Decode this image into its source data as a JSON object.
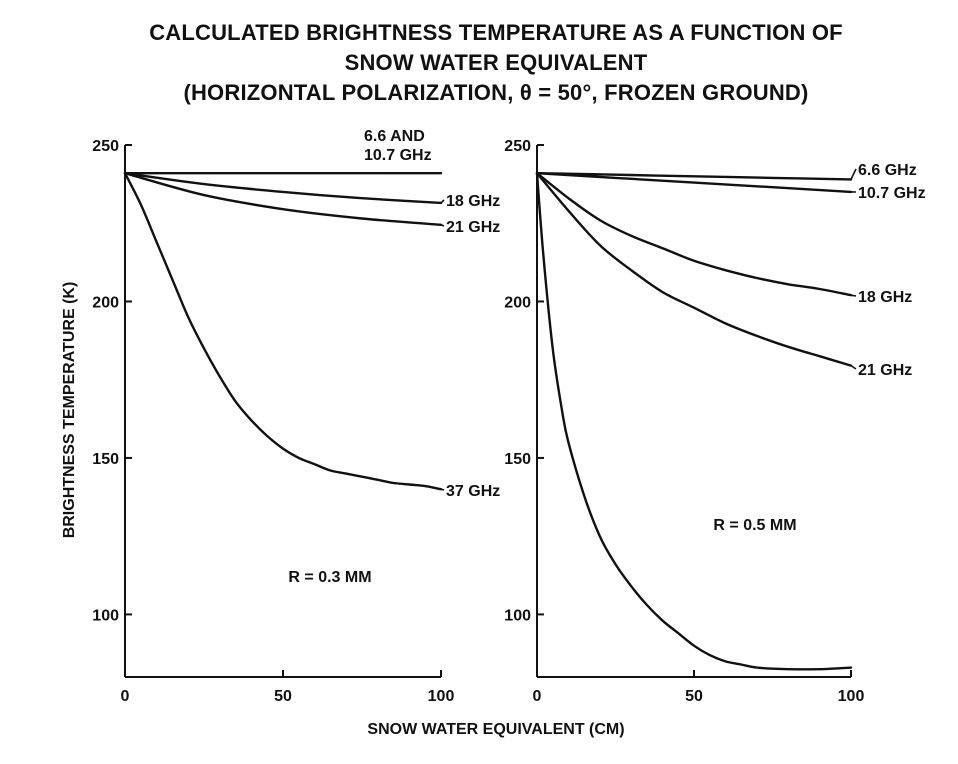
{
  "title_lines": [
    "CALCULATED BRIGHTNESS TEMPERATURE AS A FUNCTION OF",
    "SNOW WATER EQUIVALENT",
    "(HORIZONTAL POLARIZATION, θ = 50°, FROZEN GROUND)"
  ],
  "shared_ylabel": "BRIGHTNESS TEMPERATURE (K)",
  "shared_xlabel": "SNOW WATER EQUIVALENT (CM)",
  "chart_data": [
    {
      "type": "line",
      "annotation": "R = 0.3 MM",
      "xlim": [
        0,
        100
      ],
      "ylim": [
        80,
        250
      ],
      "xticks": [
        0,
        50,
        100
      ],
      "yticks": [
        100,
        150,
        200,
        250
      ],
      "grid": false,
      "series": [
        {
          "label_lines": [
            "6.6 AND",
            "10.7 GHz"
          ],
          "x": [
            0,
            25,
            50,
            75,
            100
          ],
          "y": [
            241,
            241,
            241,
            241,
            241
          ]
        },
        {
          "label_lines": [
            "18 GHz"
          ],
          "x": [
            0,
            25,
            50,
            75,
            100
          ],
          "y": [
            241,
            237.5,
            235,
            233,
            231.5
          ]
        },
        {
          "label_lines": [
            "21 GHz"
          ],
          "x": [
            0,
            25,
            50,
            75,
            100
          ],
          "y": [
            241,
            234,
            229.5,
            226.5,
            224.5
          ]
        },
        {
          "label_lines": [
            "37 GHz"
          ],
          "x": [
            0,
            5,
            10,
            15,
            20,
            25,
            30,
            35,
            40,
            45,
            50,
            55,
            60,
            65,
            70,
            75,
            80,
            85,
            90,
            95,
            100
          ],
          "y": [
            241,
            231,
            219,
            207,
            195,
            185,
            176,
            168,
            162,
            157,
            153,
            150,
            148,
            146,
            145,
            144,
            143,
            142,
            141.5,
            141,
            140
          ]
        }
      ]
    },
    {
      "type": "line",
      "annotation": "R = 0.5 MM",
      "xlim": [
        0,
        100
      ],
      "ylim": [
        80,
        250
      ],
      "xticks": [
        0,
        50,
        100
      ],
      "yticks": [
        100,
        150,
        200,
        250
      ],
      "grid": false,
      "series": [
        {
          "label_lines": [
            "6.6 GHz"
          ],
          "x": [
            0,
            25,
            50,
            75,
            100
          ],
          "y": [
            241,
            240.5,
            240,
            239.5,
            239
          ]
        },
        {
          "label_lines": [
            "10.7 GHz"
          ],
          "x": [
            0,
            25,
            50,
            75,
            100
          ],
          "y": [
            241,
            239.5,
            238,
            236.5,
            235
          ]
        },
        {
          "label_lines": [
            "18 GHz"
          ],
          "x": [
            0,
            10,
            20,
            30,
            40,
            50,
            60,
            70,
            80,
            90,
            100
          ],
          "y": [
            241,
            233,
            226,
            221,
            217,
            213,
            210,
            207.5,
            205.5,
            204,
            202
          ]
        },
        {
          "label_lines": [
            "21 GHz"
          ],
          "x": [
            0,
            10,
            20,
            30,
            40,
            50,
            60,
            70,
            80,
            90,
            100
          ],
          "y": [
            241,
            229,
            218,
            210,
            203,
            198,
            193,
            189,
            185.5,
            182.5,
            179.5
          ]
        },
        {
          "label_lines": [],
          "x": [
            0,
            2,
            5,
            8,
            10,
            15,
            20,
            25,
            30,
            35,
            40,
            45,
            50,
            55,
            60,
            65,
            70,
            80,
            90,
            100
          ],
          "y": [
            241,
            215,
            185,
            165,
            155,
            138,
            125,
            116,
            109,
            103,
            98,
            94,
            90,
            87,
            85,
            84,
            83,
            82.5,
            82.5,
            83
          ]
        }
      ]
    }
  ]
}
